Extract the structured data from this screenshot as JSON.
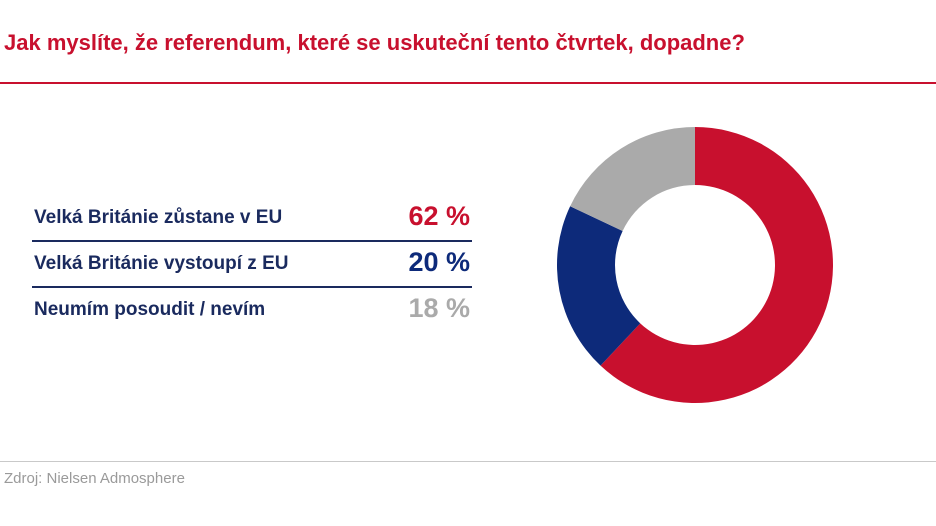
{
  "title": "Jak myslíte, že referendum, které se uskuteční tento čtvrtek, dopadne?",
  "source": "Zdroj: Nielsen Admosphere",
  "colors": {
    "title": "#c8102e",
    "label": "#1a2a5e",
    "divider": "#c9c9c9"
  },
  "chart_data": {
    "type": "pie",
    "variant": "donut",
    "categories": [
      "Velká Británie zůstane v EU",
      "Velká Británie vystoupí z EU",
      "Neumím posoudit / nevím"
    ],
    "values": [
      62,
      20,
      18
    ],
    "value_labels": [
      "62 %",
      "20 %",
      "18 %"
    ],
    "colors": [
      "#c8102e",
      "#0d2a7a",
      "#aaaaaa"
    ],
    "start": "top, clockwise",
    "legend_position": "left"
  }
}
